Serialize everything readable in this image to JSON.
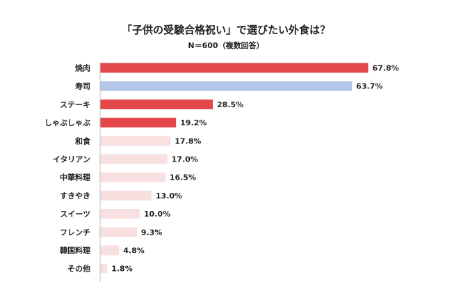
{
  "chart_data": {
    "type": "bar",
    "orientation": "horizontal",
    "title": "「子供の受験合格祝い」で選びたい外食は？",
    "subtitle": "N＝600（複数回答）",
    "categories": [
      "焼肉",
      "寿司",
      "ステーキ",
      "しゃぶしゃぶ",
      "和食",
      "イタリアン",
      "中華料理",
      "すきやき",
      "スイーツ",
      "フレンチ",
      "韓国料理",
      "その他"
    ],
    "values": [
      67.8,
      63.7,
      28.5,
      19.2,
      17.8,
      17.0,
      16.5,
      13.0,
      10.0,
      9.3,
      4.8,
      1.8
    ],
    "value_labels": [
      "67.8%",
      "63.7%",
      "28.5%",
      "19.2%",
      "17.8%",
      "17.0%",
      "16.5%",
      "13.0%",
      "10.0%",
      "9.3%",
      "4.8%",
      "1.8%"
    ],
    "bar_colors": [
      "#e3474a",
      "#b4c6e7",
      "#e3474a",
      "#e3474a",
      "#f8dfe0",
      "#f8dfe0",
      "#f8dfe0",
      "#f8dfe0",
      "#f8dfe0",
      "#f8dfe0",
      "#f8dfe0",
      "#f8dfe0"
    ],
    "xlim": [
      0,
      70
    ],
    "grid": false,
    "legend": "none"
  },
  "colors": {
    "highlight": "#e3474a",
    "secondary": "#b4c6e7",
    "muted": "#f8dfe0",
    "axis": "#bfbfbf",
    "text": "#222222"
  }
}
